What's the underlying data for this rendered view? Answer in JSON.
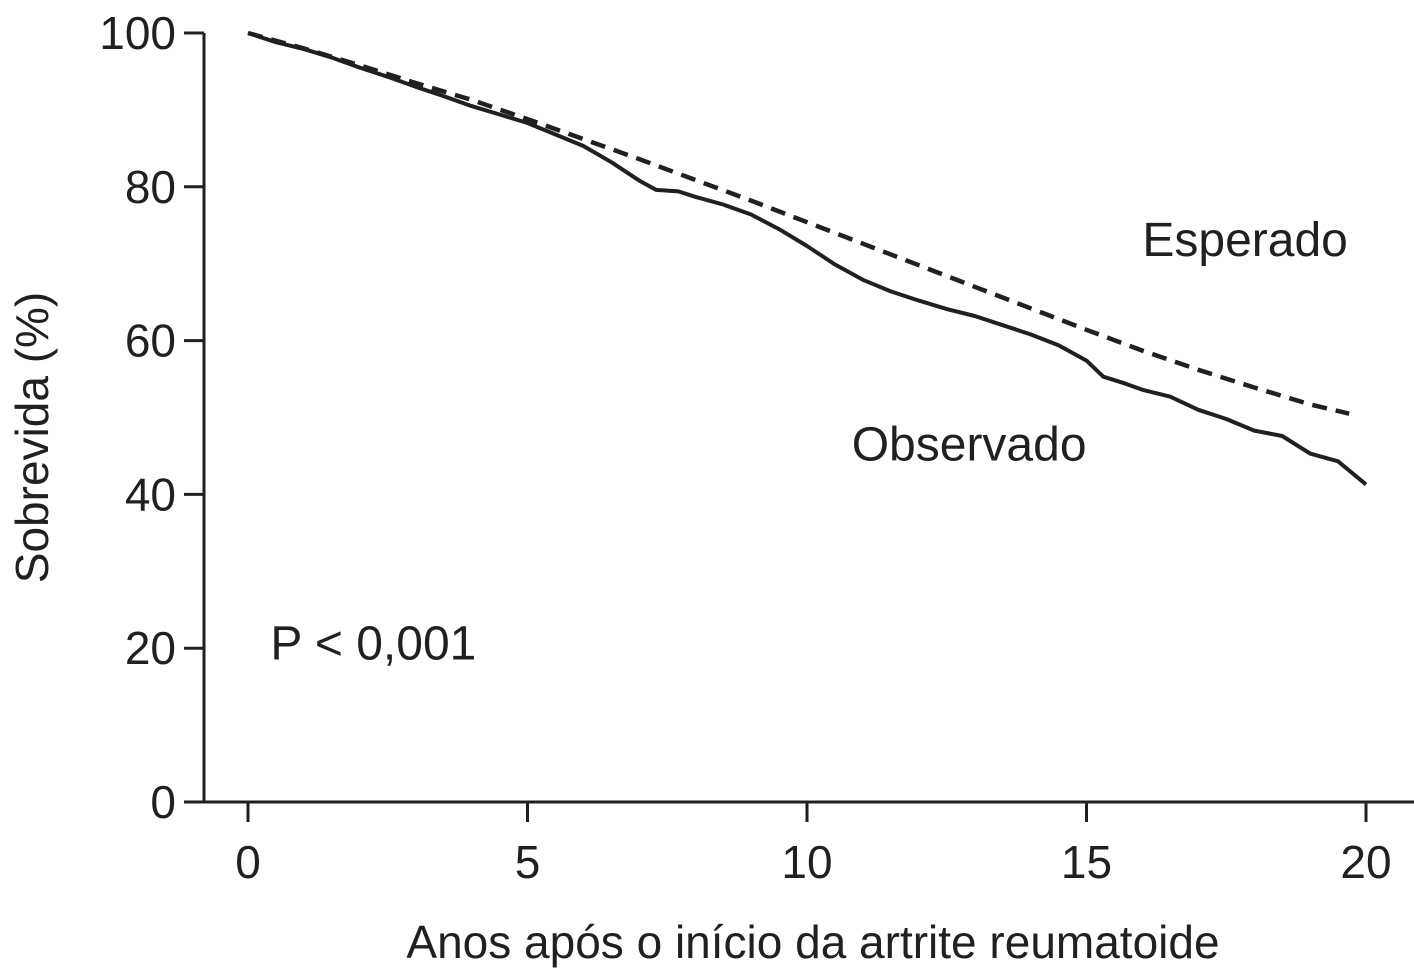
{
  "chart_data": {
    "type": "line",
    "title": "",
    "xlabel": "Anos após o início da artrite reumatoide",
    "ylabel": "Sobrevida (%)",
    "xlim": [
      0,
      20
    ],
    "ylim": [
      0,
      100
    ],
    "x_ticks": [
      0,
      5,
      10,
      15,
      20
    ],
    "y_ticks": [
      0,
      20,
      40,
      60,
      80,
      100
    ],
    "x_tick_labels": [
      "0",
      "5",
      "10",
      "15",
      "20"
    ],
    "y_tick_labels": [
      "0",
      "20",
      "40",
      "60",
      "80",
      "100"
    ],
    "grid": false,
    "legend": "none",
    "line_color": "#231f20",
    "series": [
      {
        "name": "Esperado",
        "style": "dashed",
        "x": [
          0,
          1,
          2,
          3,
          4,
          5,
          6,
          7,
          8,
          9,
          10,
          11,
          12,
          13,
          14,
          15,
          16,
          17,
          18,
          19,
          19.7
        ],
        "y": [
          100,
          98,
          95.8,
          93.5,
          91.3,
          88.8,
          86.2,
          83.6,
          80.9,
          78.2,
          75.4,
          72.6,
          69.8,
          67.0,
          64.2,
          61.4,
          58.7,
          56.2,
          53.9,
          51.7,
          50.5
        ]
      },
      {
        "name": "Observado",
        "style": "solid",
        "x": [
          0,
          0.5,
          1,
          1.5,
          2,
          2.5,
          3,
          3.5,
          4,
          4.5,
          5,
          5.5,
          6,
          6.5,
          7,
          7.3,
          7.7,
          8,
          8.5,
          9,
          9.5,
          10,
          10.5,
          11,
          11.5,
          12,
          12.5,
          13,
          13.5,
          14,
          14.5,
          15,
          15.3,
          15.7,
          16,
          16.5,
          17,
          17.5,
          18,
          18.5,
          19,
          19.5,
          20
        ],
        "y": [
          100,
          98.8,
          97.9,
          96.8,
          95.5,
          94.3,
          93.0,
          91.8,
          90.5,
          89.4,
          88.3,
          86.8,
          85.3,
          83.2,
          80.8,
          79.6,
          79.4,
          78.7,
          77.7,
          76.4,
          74.5,
          72.3,
          69.9,
          67.9,
          66.4,
          65.2,
          64.1,
          63.2,
          62.0,
          60.8,
          59.4,
          57.4,
          55.3,
          54.4,
          53.6,
          52.7,
          51.0,
          49.8,
          48.3,
          47.6,
          45.3,
          44.3,
          41.3
        ]
      }
    ],
    "annotations": [
      {
        "text": "Esperado",
        "x": 16,
        "y": 71
      },
      {
        "text": "Observado",
        "x": 10.8,
        "y": 44.4
      },
      {
        "text": "P < 0,001",
        "x": 0.4,
        "y": 18.5
      }
    ]
  }
}
